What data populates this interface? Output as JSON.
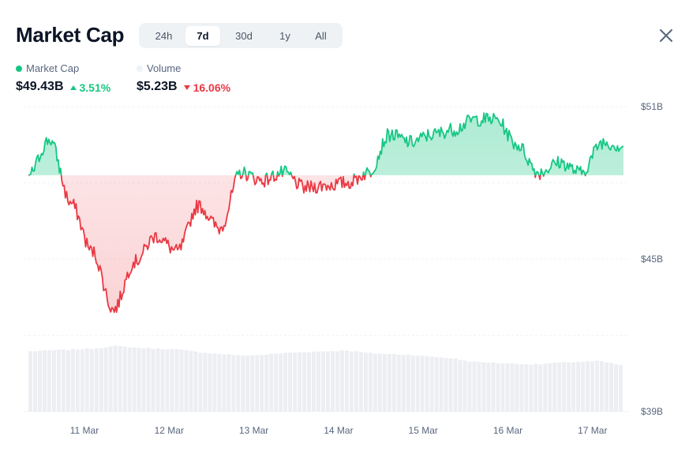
{
  "header": {
    "title": "Market Cap",
    "close_icon": "close-icon"
  },
  "tabs": [
    {
      "label": "24h",
      "active": false
    },
    {
      "label": "7d",
      "active": true
    },
    {
      "label": "30d",
      "active": false
    },
    {
      "label": "1y",
      "active": false
    },
    {
      "label": "All",
      "active": false
    }
  ],
  "legend": {
    "market_cap": {
      "label": "Market Cap",
      "color": "#16c784"
    },
    "volume": {
      "label": "Volume",
      "color": "#eff2f5"
    }
  },
  "stats": {
    "market_cap": {
      "value": "$49.43B",
      "change": "3.51%",
      "direction": "up"
    },
    "volume": {
      "value": "$5.23B",
      "change": "16.06%",
      "direction": "down"
    }
  },
  "colors": {
    "up": "#16c784",
    "down": "#ea3943",
    "grid": "#eff2f5",
    "volume_bar": "#eceef2"
  },
  "chart_data": {
    "type": "line",
    "series": [
      {
        "name": "Market Cap",
        "unit": "B USD",
        "baseline": 48.3,
        "x": [
          "10 Mar 12:00",
          "10 Mar 18:00",
          "11 Mar 00:00",
          "11 Mar 06:00",
          "11 Mar 12:00",
          "11 Mar 18:00",
          "12 Mar 00:00",
          "12 Mar 06:00",
          "12 Mar 12:00",
          "12 Mar 18:00",
          "13 Mar 00:00",
          "13 Mar 06:00",
          "13 Mar 12:00",
          "13 Mar 18:00",
          "14 Mar 00:00",
          "14 Mar 06:00",
          "14 Mar 12:00",
          "14 Mar 18:00",
          "15 Mar 00:00",
          "15 Mar 06:00",
          "15 Mar 12:00",
          "15 Mar 18:00",
          "16 Mar 00:00",
          "16 Mar 06:00",
          "16 Mar 12:00",
          "16 Mar 18:00",
          "17 Mar 00:00",
          "17 Mar 06:00",
          "17 Mar 12:00"
        ],
        "values": [
          48.3,
          49.7,
          47.2,
          45.3,
          43.0,
          44.9,
          45.9,
          45.3,
          47.1,
          46.2,
          48.4,
          48.1,
          48.4,
          47.8,
          47.9,
          48.0,
          48.4,
          49.9,
          49.6,
          49.9,
          50.1,
          50.5,
          50.5,
          49.5,
          48.4,
          48.8,
          48.4,
          49.6,
          49.43
        ]
      },
      {
        "name": "Volume",
        "unit": "B USD",
        "x": [
          "10 Mar 12:00",
          "10 Mar 18:00",
          "11 Mar 00:00",
          "11 Mar 06:00",
          "11 Mar 12:00",
          "11 Mar 18:00",
          "12 Mar 00:00",
          "12 Mar 06:00",
          "12 Mar 12:00",
          "12 Mar 18:00",
          "13 Mar 00:00",
          "13 Mar 06:00",
          "13 Mar 12:00",
          "13 Mar 18:00",
          "14 Mar 00:00",
          "14 Mar 06:00",
          "14 Mar 12:00",
          "14 Mar 18:00",
          "15 Mar 00:00",
          "15 Mar 06:00",
          "15 Mar 12:00",
          "15 Mar 18:00",
          "16 Mar 00:00",
          "16 Mar 06:00",
          "16 Mar 12:00",
          "16 Mar 18:00",
          "17 Mar 00:00",
          "17 Mar 06:00",
          "17 Mar 12:00"
        ],
        "values": [
          6.8,
          6.9,
          7.0,
          7.1,
          7.4,
          7.2,
          7.1,
          7.0,
          6.7,
          6.5,
          6.3,
          6.4,
          6.6,
          6.7,
          6.8,
          6.9,
          6.6,
          6.5,
          6.4,
          6.2,
          6.0,
          5.6,
          5.5,
          5.4,
          5.3,
          5.5,
          5.6,
          5.7,
          5.23
        ]
      }
    ],
    "y_ticks": [
      "$51B",
      "$45B",
      "$39B"
    ],
    "ylim": [
      39,
      51
    ],
    "x_ticks": [
      "11 Mar",
      "12 Mar",
      "13 Mar",
      "14 Mar",
      "15 Mar",
      "16 Mar",
      "17 Mar"
    ],
    "grid": true,
    "legend_position": "top-left"
  }
}
